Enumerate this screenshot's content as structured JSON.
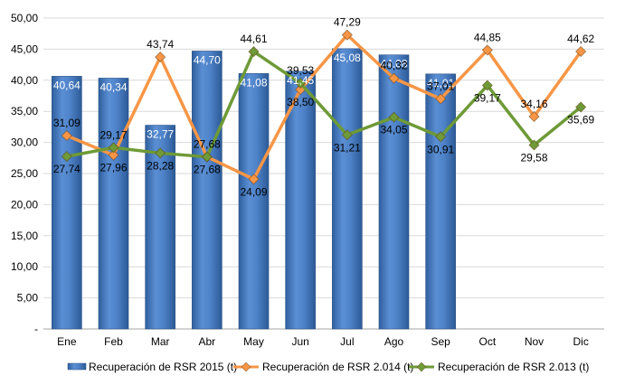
{
  "chart_data": {
    "type": "bar",
    "title": "",
    "xlabel": "",
    "ylabel": "",
    "ylim": [
      0,
      50
    ],
    "yticks": [
      "-",
      "5,00",
      "10,00",
      "15,00",
      "20,00",
      "25,00",
      "30,00",
      "35,00",
      "40,00",
      "45,00",
      "50,00"
    ],
    "grid": true,
    "legend": "bottom",
    "categories": [
      "Ene",
      "Feb",
      "Mar",
      "Abr",
      "May",
      "Jun",
      "Jul",
      "Ago",
      "Sep",
      "Oct",
      "Nov",
      "Dic"
    ],
    "series": [
      {
        "name": "Recuperación de RSR 2015 (t)",
        "type": "bar",
        "color": "#4a7ec8",
        "values": [
          40.64,
          40.34,
          32.77,
          44.7,
          41.08,
          41.45,
          45.08,
          44.08,
          41.01,
          null,
          null,
          null
        ],
        "labels": [
          "40,64",
          "40,34",
          "32,77",
          "44,70",
          "41,08",
          "41,45",
          "45,08",
          "44,08",
          "41,01",
          "",
          "",
          ""
        ]
      },
      {
        "name": "Recuperación de RSR 2.014 (t)",
        "type": "line",
        "color": "#f79646",
        "values": [
          31.09,
          27.96,
          43.74,
          27.68,
          24.09,
          38.5,
          47.29,
          40.32,
          37.01,
          44.85,
          34.16,
          44.62
        ],
        "labels": [
          "31,09",
          "27,96",
          "43,74",
          "27,68",
          "24,09",
          "38,50",
          "47,29",
          "40,32",
          "37,01",
          "44,85",
          "34,16",
          "44,62"
        ]
      },
      {
        "name": "Recuperación de RSR 2.013 (t)",
        "type": "line",
        "color": "#6e9a37",
        "values": [
          27.74,
          29.17,
          28.28,
          27.68,
          44.61,
          39.53,
          31.21,
          34.05,
          30.91,
          39.17,
          29.58,
          35.69
        ],
        "labels": [
          "27,74",
          "29,17",
          "28,28",
          "27,68",
          "44,61",
          "39,53",
          "31,21",
          "34,05",
          "30,91",
          "39,17",
          "29,58",
          "35,69"
        ]
      }
    ]
  }
}
